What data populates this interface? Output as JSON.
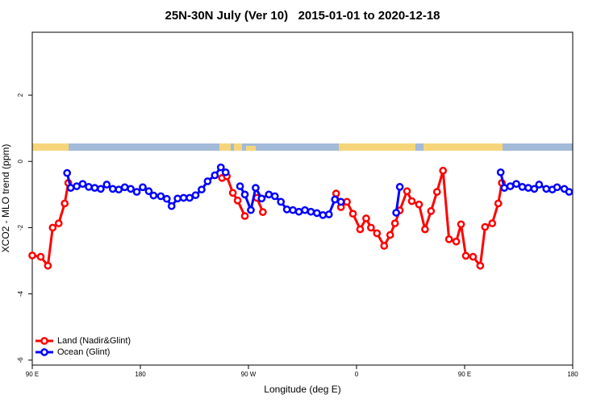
{
  "chart_data": {
    "type": "line",
    "title": "25N-30N July (Ver 10)   2015-01-01 to 2020-12-18",
    "x_label": "Longitude (deg E)",
    "y_label": "XCO2 - MLO trend (ppm)",
    "xlim": [
      90,
      540
    ],
    "ylim": [
      -6.15,
      3.9
    ],
    "xticks": [
      {
        "value": 90,
        "label": "90 E"
      },
      180,
      {
        "value": 270,
        "label": "90 W"
      },
      {
        "value": 360,
        "label": "0"
      },
      {
        "value": 450,
        "label": "90 E"
      },
      {
        "value": 540,
        "label": "180"
      }
    ],
    "yticks": [
      -6,
      -4,
      -2,
      0,
      2
    ],
    "legend": "bottom-left",
    "series": [
      {
        "name": "Land (Nadir&Glint)",
        "color": "#ff0000",
        "x": [
          90,
          97,
          103,
          107,
          112,
          117,
          120,
          null,
          248,
          252,
          257,
          261,
          267,
          null,
          277,
          282,
          null,
          343,
          347,
          352,
          357,
          363,
          368,
          372,
          377,
          383,
          388,
          392,
          396,
          402,
          406,
          412,
          417,
          422,
          427,
          432,
          437,
          443,
          447,
          451,
          457,
          463,
          467,
          473,
          478,
          481
        ],
        "values": [
          -2.84,
          -2.88,
          -3.15,
          -2.0,
          -1.87,
          -1.27,
          -0.65,
          null,
          -0.5,
          -0.45,
          -0.95,
          -1.18,
          -1.65,
          null,
          -1.1,
          -1.53,
          null,
          -0.97,
          -1.38,
          -1.22,
          -1.58,
          -2.05,
          -1.72,
          -2.0,
          -2.17,
          -2.55,
          -2.22,
          -1.87,
          -1.48,
          -0.9,
          -1.2,
          -1.3,
          -2.05,
          -1.5,
          -0.92,
          -0.28,
          -2.35,
          -2.42,
          -1.9,
          -2.85,
          -2.88,
          -3.15,
          -1.98,
          -1.87,
          -1.27,
          -0.65
        ]
      },
      {
        "name": "Ocean (Glint)",
        "color": "#0000ff",
        "x": [
          119,
          122,
          127,
          132,
          137,
          142,
          147,
          152,
          157,
          162,
          167,
          172,
          177,
          182,
          187,
          191,
          197,
          202,
          206,
          211,
          216,
          221,
          226,
          231,
          236,
          242,
          247,
          251,
          null,
          263,
          267,
          272,
          276,
          281,
          287,
          292,
          297,
          302,
          307,
          312,
          317,
          322,
          327,
          332,
          337,
          342,
          347,
          null,
          393,
          396,
          null,
          480,
          483,
          488,
          493,
          498,
          503,
          508,
          512,
          518,
          523,
          527,
          533,
          537
        ],
        "values": [
          -0.35,
          -0.8,
          -0.75,
          -0.68,
          -0.77,
          -0.8,
          -0.83,
          -0.7,
          -0.83,
          -0.85,
          -0.78,
          -0.83,
          -0.92,
          -0.78,
          -0.9,
          -1.03,
          -1.05,
          -1.13,
          -1.35,
          -1.12,
          -1.1,
          -1.1,
          -1.02,
          -0.85,
          -0.6,
          -0.42,
          -0.18,
          -0.33,
          null,
          -0.75,
          -1.0,
          -1.47,
          -0.8,
          -1.12,
          -1.0,
          -1.05,
          -1.22,
          -1.45,
          -1.47,
          -1.52,
          -1.47,
          -1.52,
          -1.56,
          -1.62,
          -1.6,
          -1.15,
          -1.22,
          null,
          -1.55,
          -0.77,
          null,
          -0.33,
          -0.8,
          -0.75,
          -0.68,
          -0.77,
          -0.8,
          -0.83,
          -0.7,
          -0.83,
          -0.85,
          -0.78,
          -0.83,
          -0.92
        ]
      }
    ]
  }
}
